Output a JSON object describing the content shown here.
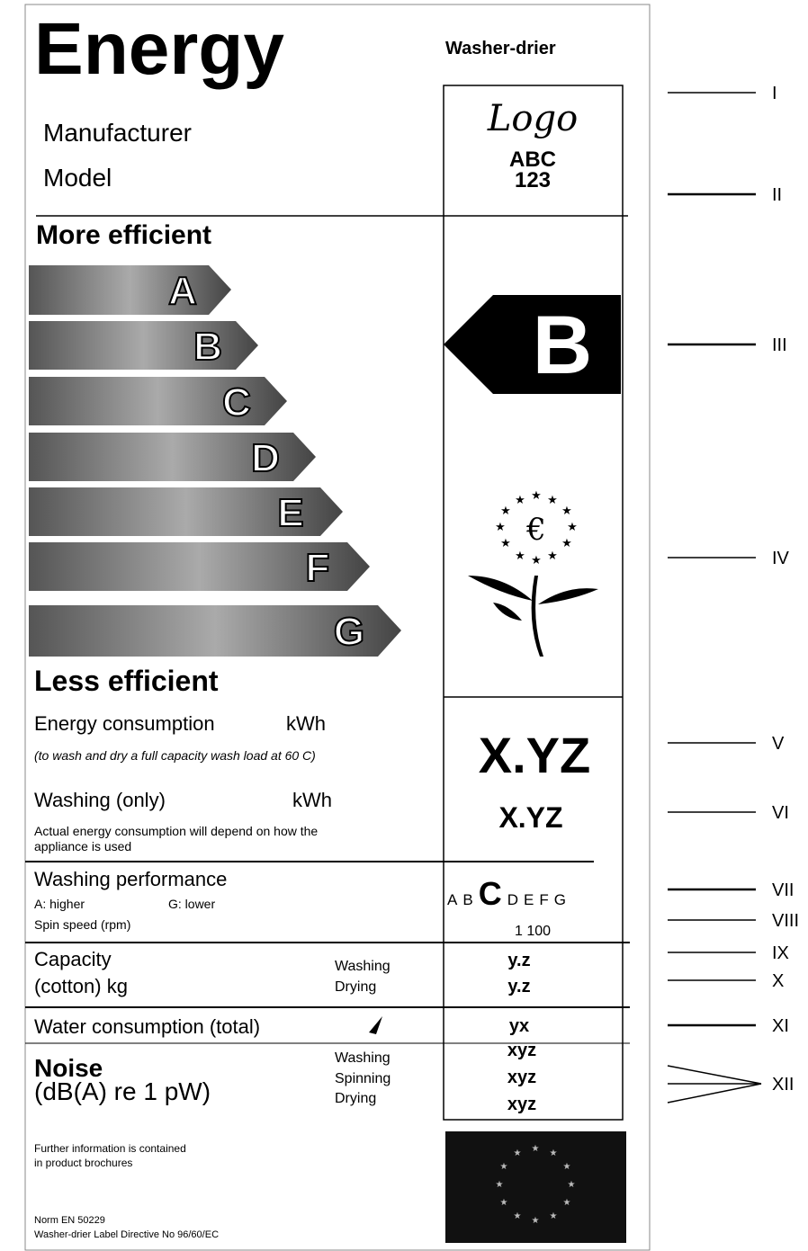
{
  "header": {
    "title": "Energy",
    "appliance": "Washer-drier",
    "manufacturer": "Manufacturer",
    "model": "Model",
    "logo": [
      "Logo",
      "ABC",
      "123"
    ]
  },
  "scale": {
    "top": "More efficient",
    "bottom": "Less efficient",
    "classes": [
      "A",
      "B",
      "C",
      "D",
      "E",
      "F",
      "G"
    ],
    "rating": "B"
  },
  "energy": {
    "label": "Energy consumption",
    "unit": "kWh",
    "note": "(to wash and dry a full capacity wash load at 60 C)",
    "value": "X.YZ"
  },
  "washing": {
    "label": "Washing (only)",
    "unit": "kWh",
    "note": "Actual energy consumption will depend on how the appliance is used",
    "value": "X.YZ"
  },
  "performance": {
    "label": "Washing performance",
    "high": "A: higher",
    "low": "G: lower",
    "classes": [
      "A",
      "B",
      "C",
      "D",
      "E",
      "F",
      "G"
    ]
  },
  "spin": {
    "label": "Spin speed (rpm)",
    "value": "1 100"
  },
  "capacity": {
    "label": [
      "Capacity",
      "(cotton) kg"
    ],
    "rows": [
      {
        "label": "Washing",
        "value": "y.z"
      },
      {
        "label": "Drying",
        "value": "y.z"
      }
    ]
  },
  "water": {
    "label": "Water consumption (total)",
    "value": "yx"
  },
  "noise": {
    "label": [
      "Noise",
      "(dB(A) re 1 pW)"
    ],
    "rows": [
      {
        "label": "Washing",
        "value": "xyz"
      },
      {
        "label": "Spinning",
        "value": "xyz"
      },
      {
        "label": "Drying",
        "value": "xyz"
      }
    ]
  },
  "footer": {
    "info": [
      "Further information is contained",
      "in product brochures"
    ],
    "norm": "Norm EN 50229",
    "directive": "Washer-drier Label Directive No 96/60/EC"
  },
  "callouts": [
    "I",
    "II",
    "III",
    "IV",
    "V",
    "VI",
    "VII",
    "VIII",
    "IX",
    "X",
    "XI",
    "XII"
  ]
}
